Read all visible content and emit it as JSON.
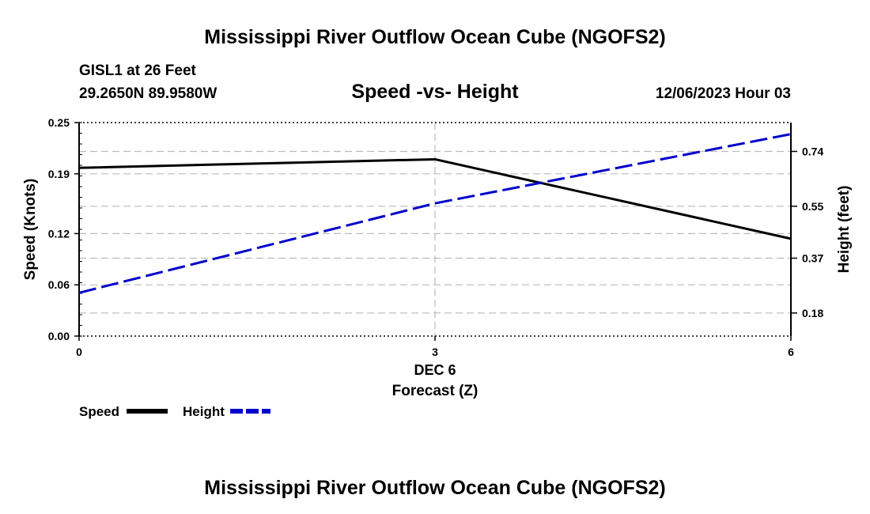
{
  "page": {
    "title_top": "Mississippi River Outflow Ocean Cube (NGOFS2)",
    "title_bottom": "Mississippi River Outflow Ocean Cube (NGOFS2)",
    "station": "GISL1 at 26 Feet",
    "coords": "29.2650N  89.9580W",
    "datetime": "12/06/2023 Hour 03"
  },
  "chart_data": {
    "type": "line",
    "title": "Speed -vs- Height",
    "xlabel": "Forecast (Z)",
    "ylabel_left": "Speed (Knots)",
    "ylabel_right": "Height (feet)",
    "x_date_label": "DEC 6",
    "x": [
      0,
      3,
      6
    ],
    "xlim": [
      0,
      6
    ],
    "x_ticks": [
      "0",
      "3",
      "6"
    ],
    "ylim_left": [
      0,
      0.25
    ],
    "y_ticks_left": [
      "0.25",
      "0.19",
      "0.12",
      "0.06",
      "0.00"
    ],
    "y_tick_values_left": [
      0.25,
      0.19,
      0.12,
      0.06,
      0.0
    ],
    "ylim_right": [
      0.1,
      0.84
    ],
    "y_ticks_right": [
      "0.74",
      "0.55",
      "0.37",
      "0.18"
    ],
    "y_tick_values_right": [
      0.74,
      0.55,
      0.37,
      0.18
    ],
    "grid": true,
    "series": [
      {
        "name": "Speed",
        "axis": "left",
        "color": "#000000",
        "style": "solid",
        "x": [
          0,
          3,
          6
        ],
        "values": [
          0.197,
          0.207,
          0.114
        ]
      },
      {
        "name": "Height",
        "axis": "right",
        "color": "#0000cc",
        "style": "dashed",
        "x": [
          0,
          3,
          6
        ],
        "values": [
          0.25,
          0.56,
          0.8
        ]
      }
    ],
    "legend": [
      {
        "label": "Speed",
        "color": "#000000",
        "style": "solid"
      },
      {
        "label": "Height",
        "color": "#0000cc",
        "style": "dashed"
      }
    ],
    "legend_position": "bottom-left"
  }
}
